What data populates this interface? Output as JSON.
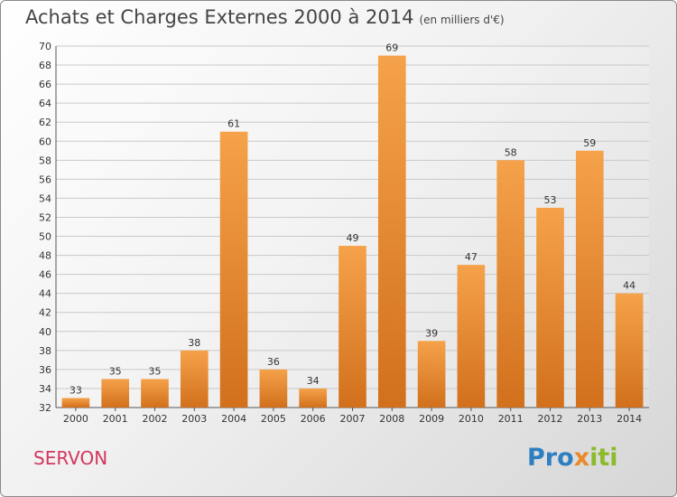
{
  "title": "Achats et Charges Externes 2000 à 2014",
  "unit": "(en milliers d'€)",
  "city": "SERVON",
  "logo": {
    "letters": [
      "P",
      "r",
      "o",
      "x",
      "i",
      "t",
      "i"
    ],
    "colors": [
      "#2e7fc2",
      "#2e7fc2",
      "#2e7fc2",
      "#e8892a",
      "#8bbb2a",
      "#8bbb2a",
      "#8bbb2a"
    ]
  },
  "colors": {
    "bar_top": "#f5a24a",
    "bar_bottom": "#d2701c",
    "title": "#444444",
    "city": "#d4365e"
  },
  "chart_data": {
    "type": "bar",
    "categories": [
      "2000",
      "2001",
      "2002",
      "2003",
      "2004",
      "2005",
      "2006",
      "2007",
      "2008",
      "2009",
      "2010",
      "2011",
      "2012",
      "2013",
      "2014"
    ],
    "values": [
      33,
      35,
      35,
      38,
      61,
      36,
      34,
      49,
      69,
      39,
      47,
      58,
      53,
      59,
      44
    ],
    "title": "Achats et Charges Externes 2000 à 2014",
    "ylim": [
      32,
      70
    ],
    "yticks": [
      32,
      34,
      36,
      38,
      40,
      42,
      44,
      46,
      48,
      50,
      52,
      54,
      56,
      58,
      60,
      62,
      64,
      66,
      68,
      70
    ],
    "grid": true
  }
}
